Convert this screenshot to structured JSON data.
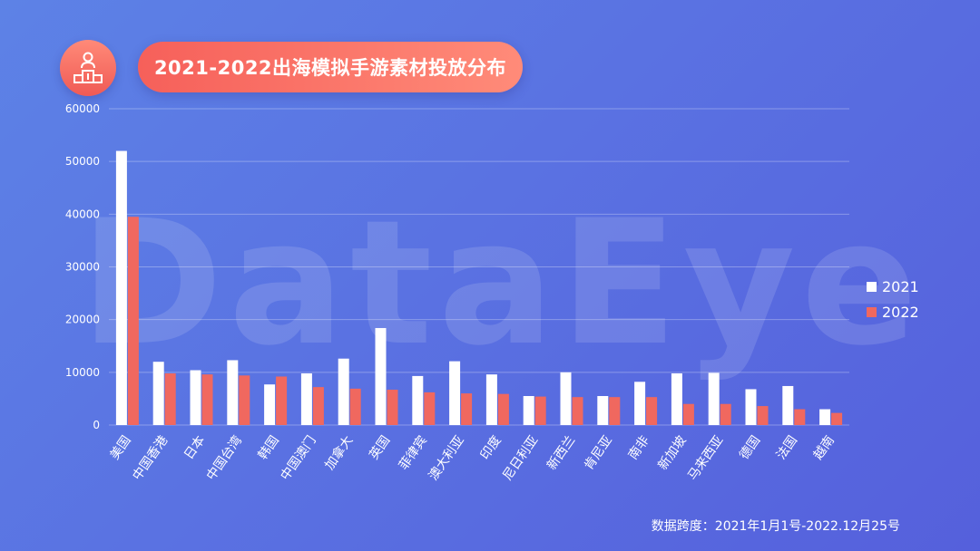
{
  "header": {
    "title": "2021-2022出海模拟手游素材投放分布"
  },
  "watermark": "DataEye",
  "footnote": "数据跨度：2021年1月1号-2022.12月25号",
  "colors": {
    "series_2021": "#ffffff",
    "series_2022": "#f0685f",
    "badge": "#f2625a"
  },
  "icons": {
    "badge_icon": "podium-person-icon"
  },
  "chart_data": {
    "type": "bar",
    "categories": [
      "美国",
      "中国香港",
      "日本",
      "中国台湾",
      "韩国",
      "中国澳门",
      "加拿大",
      "英国",
      "菲律宾",
      "澳大利亚",
      "印度",
      "尼日利亚",
      "新西兰",
      "肯尼亚",
      "南非",
      "新加坡",
      "马来西亚",
      "德国",
      "法国",
      "越南"
    ],
    "series": [
      {
        "name": "2021",
        "values": [
          52000,
          12000,
          10400,
          12300,
          7700,
          9800,
          12600,
          18400,
          9300,
          12100,
          9600,
          5500,
          10000,
          5500,
          8200,
          9800,
          9900,
          6800,
          7400,
          3000
        ]
      },
      {
        "name": "2022",
        "values": [
          39500,
          9800,
          9600,
          9400,
          9200,
          7200,
          6900,
          6700,
          6200,
          6000,
          5900,
          5400,
          5300,
          5300,
          5300,
          4000,
          4000,
          3600,
          3000,
          2300
        ]
      }
    ],
    "yticks": [
      0,
      10000,
      20000,
      30000,
      40000,
      50000,
      60000
    ],
    "ylim": [
      0,
      60000
    ],
    "grid": true,
    "legend_position": "right"
  }
}
